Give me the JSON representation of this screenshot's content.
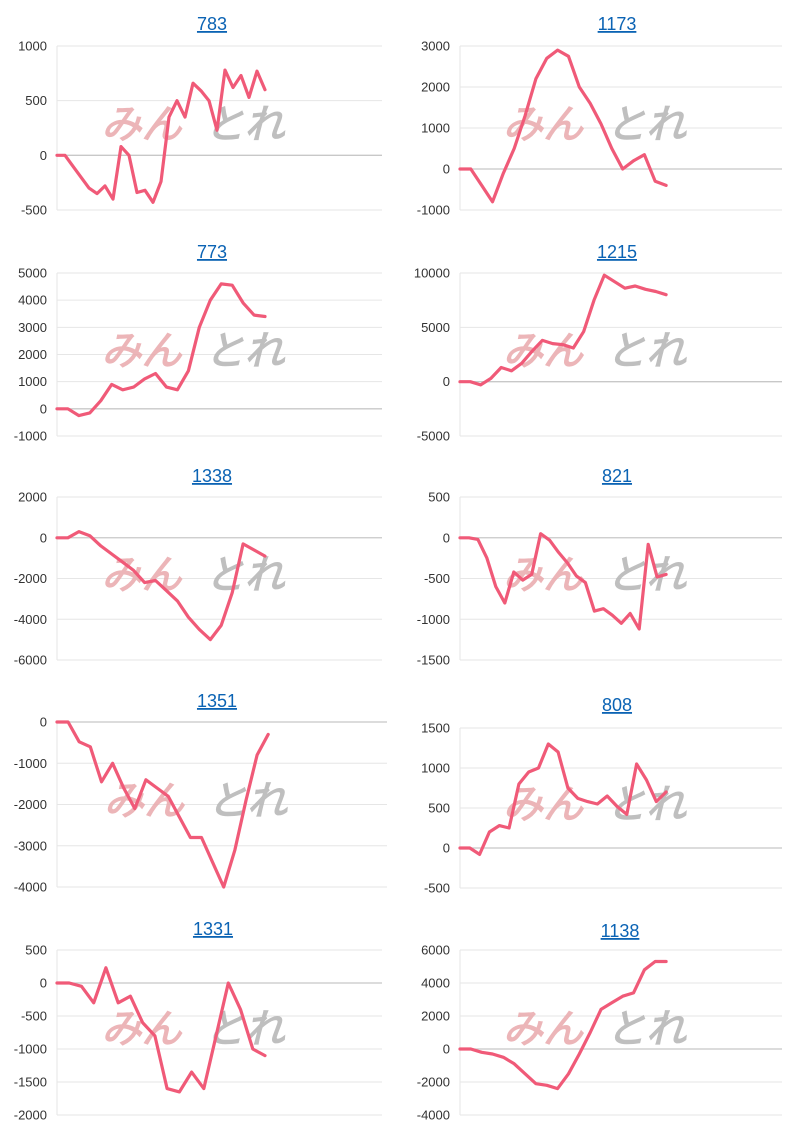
{
  "watermark": {
    "kana": "みん",
    "kana2": "とれ",
    "accent_color": "#e9a9ac",
    "gray_color": "#b5b5b5"
  },
  "line_color": "#f05a78",
  "chart_data": [
    {
      "type": "line",
      "title": "783",
      "ylim": [
        -500,
        1000
      ],
      "y": [
        0,
        0,
        -100,
        -200,
        -300,
        -350,
        -280,
        -400,
        80,
        0,
        -340,
        -320,
        -430,
        -240,
        350,
        500,
        350,
        660,
        590,
        500,
        230,
        780,
        620,
        730,
        530,
        770,
        600
      ]
    },
    {
      "type": "line",
      "title": "1173",
      "ylim": [
        -1000,
        3000
      ],
      "y": [
        0,
        0,
        -400,
        -800,
        -100,
        500,
        1300,
        2200,
        2700,
        2900,
        2750,
        2000,
        1600,
        1100,
        500,
        0,
        200,
        350,
        -300,
        -400
      ]
    },
    {
      "type": "line",
      "title": "773",
      "ylim": [
        -1000,
        5000
      ],
      "y": [
        0,
        0,
        -250,
        -150,
        300,
        900,
        700,
        800,
        1100,
        1300,
        800,
        700,
        1400,
        3000,
        4000,
        4600,
        4550,
        3900,
        3450,
        3400
      ]
    },
    {
      "type": "line",
      "title": "1215",
      "ylim": [
        -5000,
        10000
      ],
      "y": [
        0,
        0,
        -300,
        300,
        1300,
        1000,
        1700,
        2800,
        3800,
        3500,
        3400,
        3100,
        4600,
        7500,
        9800,
        9200,
        8600,
        8800,
        8500,
        8300,
        8000
      ]
    },
    {
      "type": "line",
      "title": "1338",
      "ylim": [
        -6000,
        2000
      ],
      "y": [
        0,
        0,
        300,
        100,
        -400,
        -800,
        -1200,
        -1600,
        -2200,
        -2100,
        -2600,
        -3100,
        -3900,
        -4500,
        -5000,
        -4300,
        -2700,
        -300,
        -600,
        -900
      ]
    },
    {
      "type": "line",
      "title": "821",
      "ylim": [
        -1500,
        500
      ],
      "y": [
        0,
        0,
        -20,
        -250,
        -600,
        -800,
        -420,
        -520,
        -450,
        50,
        -30,
        -180,
        -310,
        -470,
        -550,
        -900,
        -870,
        -950,
        -1050,
        -930,
        -1120,
        -80,
        -480,
        -450
      ]
    },
    {
      "type": "line",
      "title": "1351",
      "ylim": [
        -4000,
        0
      ],
      "y": [
        0,
        0,
        -480,
        -600,
        -1450,
        -1000,
        -1600,
        -2100,
        -1400,
        -1600,
        -1800,
        -2300,
        -2800,
        -2800,
        -3400,
        -4000,
        -3100,
        -1900,
        -800,
        -300
      ]
    },
    {
      "type": "line",
      "title": "808",
      "ylim": [
        -500,
        1500
      ],
      "y": [
        0,
        0,
        -80,
        200,
        280,
        250,
        800,
        950,
        1000,
        1300,
        1200,
        750,
        620,
        580,
        550,
        650,
        520,
        420,
        1050,
        850,
        580,
        700
      ]
    },
    {
      "type": "line",
      "title": "1331",
      "ylim": [
        -2000,
        500
      ],
      "y": [
        0,
        0,
        -50,
        -300,
        230,
        -300,
        -200,
        -600,
        -800,
        -1600,
        -1650,
        -1350,
        -1600,
        -800,
        0,
        -400,
        -1000,
        -1100
      ]
    },
    {
      "type": "line",
      "title": "1138",
      "ylim": [
        -4000,
        6000
      ],
      "y": [
        0,
        0,
        -200,
        -300,
        -500,
        -900,
        -1500,
        -2100,
        -2200,
        -2400,
        -1500,
        -300,
        1000,
        2400,
        2800,
        3200,
        3400,
        4800,
        5300,
        5300
      ]
    }
  ],
  "axis_ticks": [
    [
      1000,
      500,
      0,
      -500
    ],
    [
      3000,
      2000,
      1000,
      0,
      -1000
    ],
    [
      5000,
      4000,
      3000,
      2000,
      1000,
      0,
      -1000
    ],
    [
      10000,
      5000,
      0,
      -5000
    ],
    [
      2000,
      0,
      -2000,
      -4000,
      -6000
    ],
    [
      500,
      0,
      -500,
      -1000,
      -1500
    ],
    [
      0,
      -1000,
      -2000,
      -3000,
      -4000
    ],
    [
      1500,
      1000,
      500,
      0,
      -500
    ],
    [
      500,
      0,
      -500,
      -1000,
      -1500,
      -2000
    ],
    [
      6000,
      4000,
      2000,
      0,
      -2000,
      -4000
    ]
  ]
}
